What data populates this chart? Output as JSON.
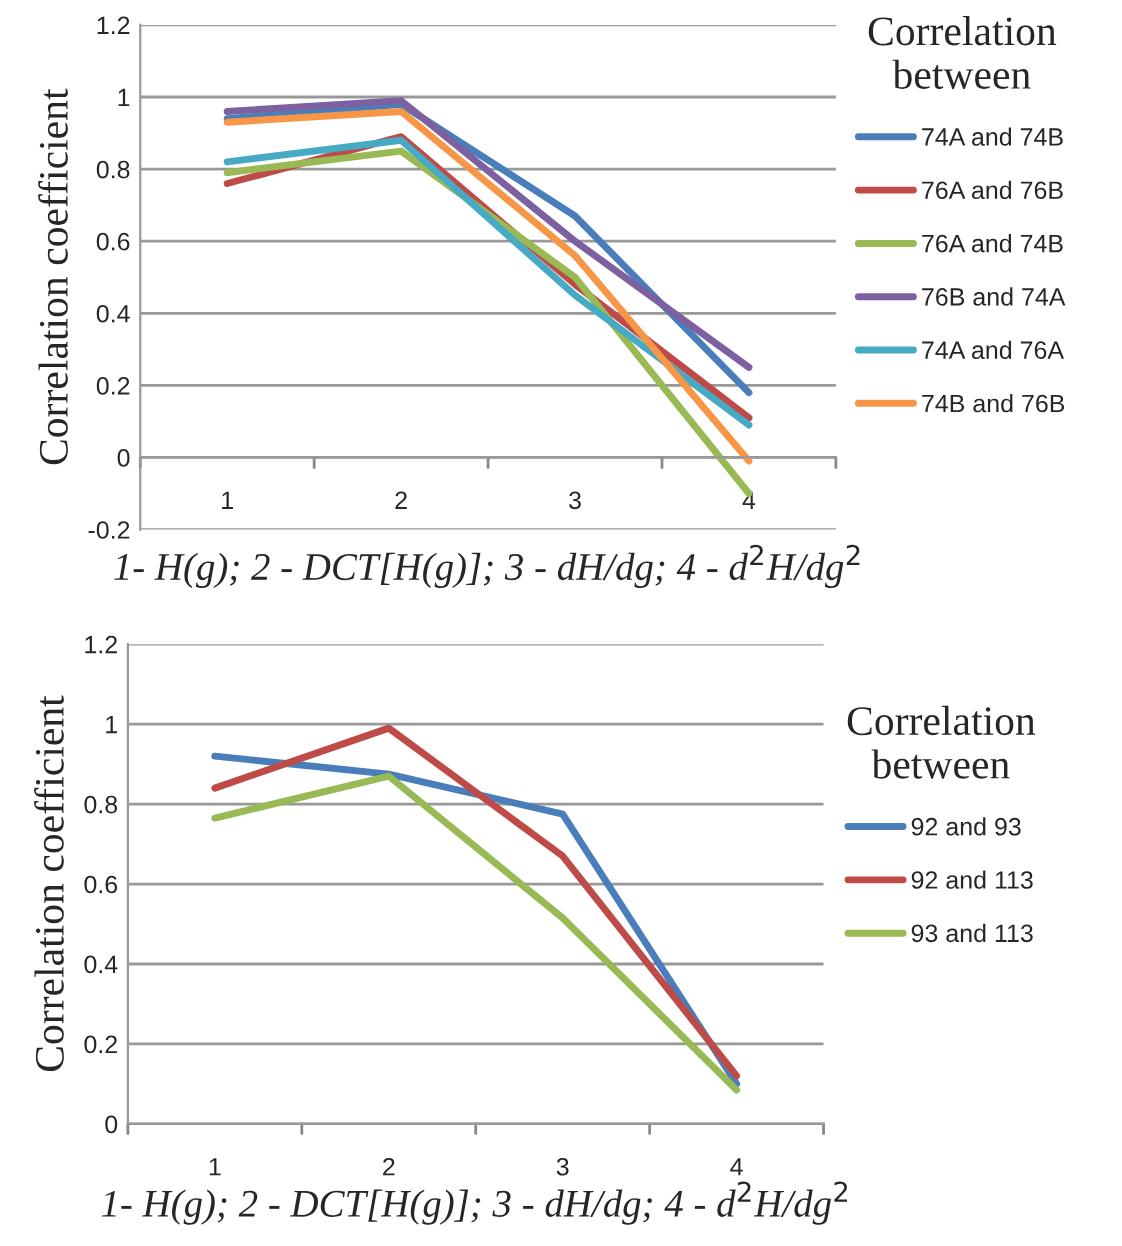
{
  "chart_data": [
    {
      "type": "line",
      "xlabel": "1- H(g); 2 - DCT[H(g)]; 3 - dH/dg; 4 - d$^{2}$H/dg$^{2}$",
      "ylabel": "Correlation coefficient",
      "legend_title": "Correlation\nbetween",
      "categories": [
        "1",
        "2",
        "3",
        "4"
      ],
      "ylim": [
        -0.2,
        1.2
      ],
      "yticks": [
        {
          "value": -0.2,
          "label": "-0.2"
        },
        0,
        0.2,
        0.4,
        0.6,
        0.8,
        1,
        1.2
      ],
      "grid": "y",
      "legend": "right",
      "marker": "none",
      "line_style": "solid",
      "series": [
        {
          "name": "74A and 74B",
          "color": "#4a7ebb",
          "values": [
            0.94,
            0.98,
            0.67,
            0.18
          ]
        },
        {
          "name": "76A and 76B",
          "color": "#be4b48",
          "values": [
            0.76,
            0.89,
            0.48,
            0.11
          ]
        },
        {
          "name": "76A and 74B",
          "color": "#98b954",
          "values": [
            0.79,
            0.85,
            0.5,
            -0.1
          ]
        },
        {
          "name": "76B and 74A",
          "color": "#7d60a0",
          "values": [
            0.96,
            0.99,
            0.6,
            0.25
          ]
        },
        {
          "name": "74A and 76A",
          "color": "#46aac5",
          "values": [
            0.82,
            0.88,
            0.45,
            0.09
          ]
        },
        {
          "name": "74B and 76B",
          "color": "#f79646",
          "values": [
            0.93,
            0.96,
            0.56,
            -0.01
          ]
        }
      ]
    },
    {
      "type": "line",
      "xlabel": "1- H(g); 2 - DCT[H(g)]; 3 - dH/dg; 4 - d$^{2}$H/dg$^{2}$",
      "ylabel": "Correlation coefficient",
      "legend_title": "Correlation\nbetween",
      "categories": [
        "1",
        "2",
        "3",
        "4"
      ],
      "ylim": [
        0,
        1.2
      ],
      "yticks": [
        0,
        0.2,
        0.4,
        0.6,
        0.8,
        1,
        1.2
      ],
      "grid": "y",
      "legend": "right",
      "marker": "none",
      "line_style": "solid",
      "series": [
        {
          "name": "92 and 93",
          "color": "#4a7ebb",
          "values": [
            0.92,
            0.875,
            0.775,
            0.1
          ]
        },
        {
          "name": "92 and 113",
          "color": "#be4b48",
          "values": [
            0.84,
            0.99,
            0.67,
            0.12
          ]
        },
        {
          "name": "93 and 113",
          "color": "#98b954",
          "values": [
            0.765,
            0.87,
            0.515,
            0.085
          ]
        }
      ]
    }
  ]
}
